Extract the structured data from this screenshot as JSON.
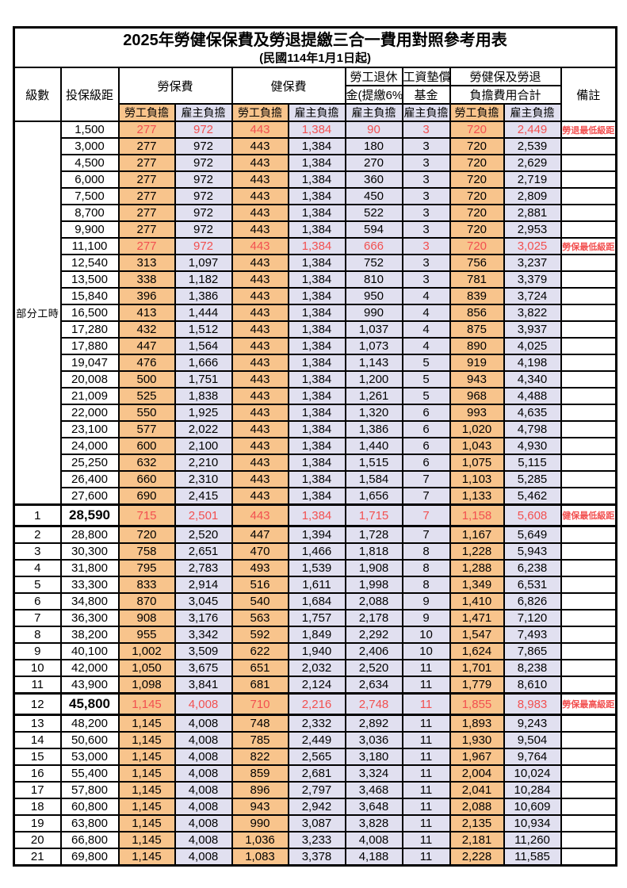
{
  "title": "2025年勞健保保費及勞退提繳三合一費用對照參考用表",
  "subtitle": "(民國114年1月1日起)",
  "colors": {
    "employee_column_bg": "#F8C48C",
    "employer_column_bg": "#E1E0F0",
    "highlight_text": "#F25050",
    "border": "#000000",
    "background": "#FFFFFF"
  },
  "header": {
    "level": "級數",
    "bracket": "投保級距",
    "labor_insurance": "勞保費",
    "health_insurance": "健保費",
    "pension_line1": "勞工退休",
    "pension_line2": "金(提繳6%)",
    "wage_fund_line1": "工資墊償",
    "wage_fund_line2": "基金",
    "total_line1": "勞健保及勞退",
    "total_line2": "負擔費用合計",
    "remark": "備註",
    "employee_burden": "勞工負擔",
    "employer_burden": "雇主負擔"
  },
  "part_time_label": "部分工時",
  "table": {
    "value_columns": [
      "勞保費-勞工負擔",
      "勞保費-雇主負擔",
      "健保費-勞工負擔",
      "健保費-雇主負擔",
      "勞工退休金-雇主負擔",
      "工資墊償基金-雇主負擔",
      "合計-勞工負擔",
      "合計-雇主負擔"
    ],
    "rows": [
      {
        "level": "",
        "bracket": "1,500",
        "values": [
          "277",
          "972",
          "443",
          "1,384",
          "90",
          "3",
          "720",
          "2,449"
        ],
        "remark": "勞退最低級距",
        "red": true,
        "tall": false
      },
      {
        "level": "",
        "bracket": "3,000",
        "values": [
          "277",
          "972",
          "443",
          "1,384",
          "180",
          "3",
          "720",
          "2,539"
        ],
        "remark": "",
        "red": false,
        "tall": false
      },
      {
        "level": "",
        "bracket": "4,500",
        "values": [
          "277",
          "972",
          "443",
          "1,384",
          "270",
          "3",
          "720",
          "2,629"
        ],
        "remark": "",
        "red": false,
        "tall": false
      },
      {
        "level": "",
        "bracket": "6,000",
        "values": [
          "277",
          "972",
          "443",
          "1,384",
          "360",
          "3",
          "720",
          "2,719"
        ],
        "remark": "",
        "red": false,
        "tall": false
      },
      {
        "level": "",
        "bracket": "7,500",
        "values": [
          "277",
          "972",
          "443",
          "1,384",
          "450",
          "3",
          "720",
          "2,809"
        ],
        "remark": "",
        "red": false,
        "tall": false
      },
      {
        "level": "",
        "bracket": "8,700",
        "values": [
          "277",
          "972",
          "443",
          "1,384",
          "522",
          "3",
          "720",
          "2,881"
        ],
        "remark": "",
        "red": false,
        "tall": false
      },
      {
        "level": "",
        "bracket": "9,900",
        "values": [
          "277",
          "972",
          "443",
          "1,384",
          "594",
          "3",
          "720",
          "2,953"
        ],
        "remark": "",
        "red": false,
        "tall": false
      },
      {
        "level": "",
        "bracket": "11,100",
        "values": [
          "277",
          "972",
          "443",
          "1,384",
          "666",
          "3",
          "720",
          "3,025"
        ],
        "remark": "勞保最低級距",
        "red": true,
        "tall": false
      },
      {
        "level": "",
        "bracket": "12,540",
        "values": [
          "313",
          "1,097",
          "443",
          "1,384",
          "752",
          "3",
          "756",
          "3,237"
        ],
        "remark": "",
        "red": false,
        "tall": false
      },
      {
        "level": "",
        "bracket": "13,500",
        "values": [
          "338",
          "1,182",
          "443",
          "1,384",
          "810",
          "3",
          "781",
          "3,379"
        ],
        "remark": "",
        "red": false,
        "tall": false
      },
      {
        "level": "",
        "bracket": "15,840",
        "values": [
          "396",
          "1,386",
          "443",
          "1,384",
          "950",
          "4",
          "839",
          "3,724"
        ],
        "remark": "",
        "red": false,
        "tall": false
      },
      {
        "level": "",
        "bracket": "16,500",
        "values": [
          "413",
          "1,444",
          "443",
          "1,384",
          "990",
          "4",
          "856",
          "3,822"
        ],
        "remark": "",
        "red": false,
        "tall": false
      },
      {
        "level": "",
        "bracket": "17,280",
        "values": [
          "432",
          "1,512",
          "443",
          "1,384",
          "1,037",
          "4",
          "875",
          "3,937"
        ],
        "remark": "",
        "red": false,
        "tall": false
      },
      {
        "level": "",
        "bracket": "17,880",
        "values": [
          "447",
          "1,564",
          "443",
          "1,384",
          "1,073",
          "4",
          "890",
          "4,025"
        ],
        "remark": "",
        "red": false,
        "tall": false
      },
      {
        "level": "",
        "bracket": "19,047",
        "values": [
          "476",
          "1,666",
          "443",
          "1,384",
          "1,143",
          "5",
          "919",
          "4,198"
        ],
        "remark": "",
        "red": false,
        "tall": false
      },
      {
        "level": "",
        "bracket": "20,008",
        "values": [
          "500",
          "1,751",
          "443",
          "1,384",
          "1,200",
          "5",
          "943",
          "4,340"
        ],
        "remark": "",
        "red": false,
        "tall": false
      },
      {
        "level": "",
        "bracket": "21,009",
        "values": [
          "525",
          "1,838",
          "443",
          "1,384",
          "1,261",
          "5",
          "968",
          "4,488"
        ],
        "remark": "",
        "red": false,
        "tall": false
      },
      {
        "level": "",
        "bracket": "22,000",
        "values": [
          "550",
          "1,925",
          "443",
          "1,384",
          "1,320",
          "6",
          "993",
          "4,635"
        ],
        "remark": "",
        "red": false,
        "tall": false
      },
      {
        "level": "",
        "bracket": "23,100",
        "values": [
          "577",
          "2,022",
          "443",
          "1,384",
          "1,386",
          "6",
          "1,020",
          "4,798"
        ],
        "remark": "",
        "red": false,
        "tall": false
      },
      {
        "level": "",
        "bracket": "24,000",
        "values": [
          "600",
          "2,100",
          "443",
          "1,384",
          "1,440",
          "6",
          "1,043",
          "4,930"
        ],
        "remark": "",
        "red": false,
        "tall": false
      },
      {
        "level": "",
        "bracket": "25,250",
        "values": [
          "632",
          "2,210",
          "443",
          "1,384",
          "1,515",
          "6",
          "1,075",
          "5,115"
        ],
        "remark": "",
        "red": false,
        "tall": false
      },
      {
        "level": "",
        "bracket": "26,400",
        "values": [
          "660",
          "2,310",
          "443",
          "1,384",
          "1,584",
          "7",
          "1,103",
          "5,285"
        ],
        "remark": "",
        "red": false,
        "tall": false
      },
      {
        "level": "",
        "bracket": "27,600",
        "values": [
          "690",
          "2,415",
          "443",
          "1,384",
          "1,656",
          "7",
          "1,133",
          "5,462"
        ],
        "remark": "",
        "red": false,
        "tall": false
      },
      {
        "level": "1",
        "bracket": "28,590",
        "values": [
          "715",
          "2,501",
          "443",
          "1,384",
          "1,715",
          "7",
          "1,158",
          "5,608"
        ],
        "remark": "健保最低級距",
        "red": true,
        "tall": true
      },
      {
        "level": "2",
        "bracket": "28,800",
        "values": [
          "720",
          "2,520",
          "447",
          "1,394",
          "1,728",
          "7",
          "1,167",
          "5,649"
        ],
        "remark": "",
        "red": false,
        "tall": false
      },
      {
        "level": "3",
        "bracket": "30,300",
        "values": [
          "758",
          "2,651",
          "470",
          "1,466",
          "1,818",
          "8",
          "1,228",
          "5,943"
        ],
        "remark": "",
        "red": false,
        "tall": false
      },
      {
        "level": "4",
        "bracket": "31,800",
        "values": [
          "795",
          "2,783",
          "493",
          "1,539",
          "1,908",
          "8",
          "1,288",
          "6,238"
        ],
        "remark": "",
        "red": false,
        "tall": false
      },
      {
        "level": "5",
        "bracket": "33,300",
        "values": [
          "833",
          "2,914",
          "516",
          "1,611",
          "1,998",
          "8",
          "1,349",
          "6,531"
        ],
        "remark": "",
        "red": false,
        "tall": false
      },
      {
        "level": "6",
        "bracket": "34,800",
        "values": [
          "870",
          "3,045",
          "540",
          "1,684",
          "2,088",
          "9",
          "1,410",
          "6,826"
        ],
        "remark": "",
        "red": false,
        "tall": false
      },
      {
        "level": "7",
        "bracket": "36,300",
        "values": [
          "908",
          "3,176",
          "563",
          "1,757",
          "2,178",
          "9",
          "1,471",
          "7,120"
        ],
        "remark": "",
        "red": false,
        "tall": false
      },
      {
        "level": "8",
        "bracket": "38,200",
        "values": [
          "955",
          "3,342",
          "592",
          "1,849",
          "2,292",
          "10",
          "1,547",
          "7,493"
        ],
        "remark": "",
        "red": false,
        "tall": false
      },
      {
        "level": "9",
        "bracket": "40,100",
        "values": [
          "1,002",
          "3,509",
          "622",
          "1,940",
          "2,406",
          "10",
          "1,624",
          "7,865"
        ],
        "remark": "",
        "red": false,
        "tall": false
      },
      {
        "level": "10",
        "bracket": "42,000",
        "values": [
          "1,050",
          "3,675",
          "651",
          "2,032",
          "2,520",
          "11",
          "1,701",
          "8,238"
        ],
        "remark": "",
        "red": false,
        "tall": false
      },
      {
        "level": "11",
        "bracket": "43,900",
        "values": [
          "1,098",
          "3,841",
          "681",
          "2,124",
          "2,634",
          "11",
          "1,779",
          "8,610"
        ],
        "remark": "",
        "red": false,
        "tall": false
      },
      {
        "level": "12",
        "bracket": "45,800",
        "values": [
          "1,145",
          "4,008",
          "710",
          "2,216",
          "2,748",
          "11",
          "1,855",
          "8,983"
        ],
        "remark": "勞保最高級距",
        "red": true,
        "tall": true
      },
      {
        "level": "13",
        "bracket": "48,200",
        "values": [
          "1,145",
          "4,008",
          "748",
          "2,332",
          "2,892",
          "11",
          "1,893",
          "9,243"
        ],
        "remark": "",
        "red": false,
        "tall": false
      },
      {
        "level": "14",
        "bracket": "50,600",
        "values": [
          "1,145",
          "4,008",
          "785",
          "2,449",
          "3,036",
          "11",
          "1,930",
          "9,504"
        ],
        "remark": "",
        "red": false,
        "tall": false
      },
      {
        "level": "15",
        "bracket": "53,000",
        "values": [
          "1,145",
          "4,008",
          "822",
          "2,565",
          "3,180",
          "11",
          "1,967",
          "9,764"
        ],
        "remark": "",
        "red": false,
        "tall": false
      },
      {
        "level": "16",
        "bracket": "55,400",
        "values": [
          "1,145",
          "4,008",
          "859",
          "2,681",
          "3,324",
          "11",
          "2,004",
          "10,024"
        ],
        "remark": "",
        "red": false,
        "tall": false
      },
      {
        "level": "17",
        "bracket": "57,800",
        "values": [
          "1,145",
          "4,008",
          "896",
          "2,797",
          "3,468",
          "11",
          "2,041",
          "10,284"
        ],
        "remark": "",
        "red": false,
        "tall": false
      },
      {
        "level": "18",
        "bracket": "60,800",
        "values": [
          "1,145",
          "4,008",
          "943",
          "2,942",
          "3,648",
          "11",
          "2,088",
          "10,609"
        ],
        "remark": "",
        "red": false,
        "tall": false
      },
      {
        "level": "19",
        "bracket": "63,800",
        "values": [
          "1,145",
          "4,008",
          "990",
          "3,087",
          "3,828",
          "11",
          "2,135",
          "10,934"
        ],
        "remark": "",
        "red": false,
        "tall": false
      },
      {
        "level": "20",
        "bracket": "66,800",
        "values": [
          "1,145",
          "4,008",
          "1,036",
          "3,233",
          "4,008",
          "11",
          "2,181",
          "11,260"
        ],
        "remark": "",
        "red": false,
        "tall": false
      },
      {
        "level": "21",
        "bracket": "69,800",
        "values": [
          "1,145",
          "4,008",
          "1,083",
          "3,378",
          "4,188",
          "11",
          "2,228",
          "11,585"
        ],
        "remark": "",
        "red": false,
        "tall": false
      }
    ]
  }
}
